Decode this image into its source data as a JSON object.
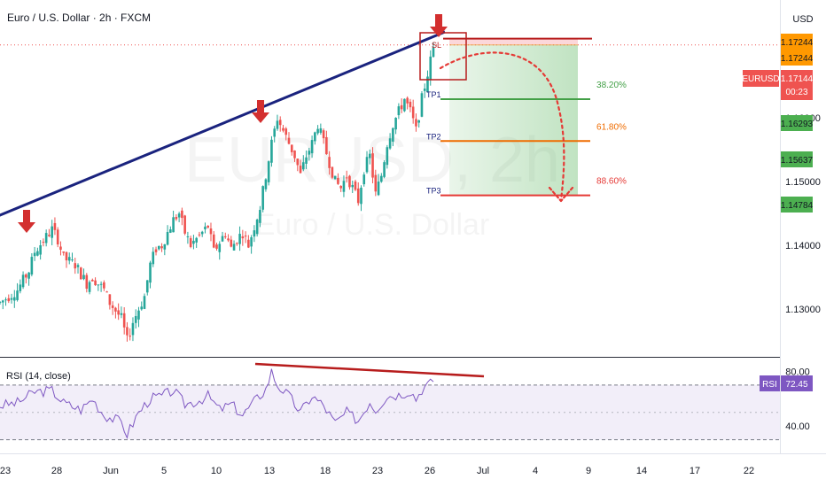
{
  "header": {
    "title": "Euro / U.S. Dollar · 2h · FXCM"
  },
  "watermark": {
    "symbol": "EURUSD, 2h",
    "name": "Euro / U.S. Dollar"
  },
  "price_axis": {
    "currency": "USD",
    "ticks": [
      "1.16000",
      "1.15000",
      "1.14000",
      "1.13000"
    ]
  },
  "price_tags": [
    {
      "text": "1.17244",
      "color": "#ff9800",
      "kind": "sl"
    },
    {
      "text": "1.17244",
      "color": "#ff9800",
      "kind": "sl2"
    },
    {
      "text": "1.16293",
      "color": "#4caf50",
      "kind": "tp1"
    },
    {
      "text": "1.15637",
      "color": "#4caf50",
      "kind": "tp2"
    },
    {
      "text": "1.14784",
      "color": "#4caf50",
      "kind": "tp3"
    }
  ],
  "current": {
    "symbol": "EURUSD",
    "price": "1.17144",
    "countdown": "00:23",
    "color": "#ef5350"
  },
  "levels": [
    {
      "label": "SL",
      "price": 1.17244,
      "color": "#b71c1c"
    },
    {
      "label": "TP1",
      "price": 1.16293,
      "pct": "38.20%",
      "color": "#43a047"
    },
    {
      "label": "TP2",
      "price": 1.15637,
      "pct": "61.80%",
      "color": "#ef6c00"
    },
    {
      "label": "TP3",
      "price": 1.14784,
      "pct": "88.60%",
      "color": "#e53935"
    }
  ],
  "rsi": {
    "title": "RSI (14, close)",
    "badge_label": "RSI",
    "value": "72.45",
    "ticks": [
      "80.00",
      "40.00"
    ],
    "upper": 70,
    "lower": 30
  },
  "x_axis": {
    "ticks": [
      "23",
      "28",
      "Jun",
      "5",
      "10",
      "13",
      "18",
      "23",
      "26",
      "Jul",
      "4",
      "9",
      "14",
      "17",
      "22"
    ]
  },
  "chart_data": {
    "type": "candlestick",
    "title": "Euro / U.S. Dollar · 2h · FXCM",
    "ylim": [
      1.1225,
      1.1785
    ],
    "x_ticks": [
      "23",
      "28",
      "Jun",
      "5",
      "10",
      "13",
      "18",
      "23",
      "26",
      "Jul",
      "4",
      "9",
      "14",
      "17",
      "22"
    ],
    "close_path": [
      [
        0,
        1.131
      ],
      [
        3,
        1.133
      ],
      [
        5,
        1.136
      ],
      [
        6,
        1.139
      ],
      [
        9,
        1.1425
      ],
      [
        10,
        1.141
      ],
      [
        11,
        1.138
      ],
      [
        13,
        1.137
      ],
      [
        15,
        1.134
      ],
      [
        16,
        1.135
      ],
      [
        18,
        1.133
      ],
      [
        19,
        1.131
      ],
      [
        21,
        1.1285
      ],
      [
        22,
        1.125
      ],
      [
        23,
        1.128
      ],
      [
        25,
        1.132
      ],
      [
        26,
        1.137
      ],
      [
        27,
        1.1395
      ],
      [
        28,
        1.14
      ],
      [
        30,
        1.144
      ],
      [
        31,
        1.145
      ],
      [
        32,
        1.142
      ],
      [
        33,
        1.14
      ],
      [
        34,
        1.141
      ],
      [
        36,
        1.143
      ],
      [
        37,
        1.139
      ],
      [
        39,
        1.142
      ],
      [
        40,
        1.1395
      ],
      [
        41,
        1.141
      ],
      [
        42,
        1.142
      ],
      [
        43,
        1.14
      ],
      [
        44,
        1.143
      ],
      [
        45,
        1.146
      ],
      [
        46,
        1.151
      ],
      [
        47,
        1.156
      ],
      [
        48,
        1.16
      ],
      [
        49,
        1.158
      ],
      [
        50,
        1.156
      ],
      [
        51,
        1.154
      ],
      [
        52,
        1.151
      ],
      [
        53,
        1.154
      ],
      [
        54,
        1.156
      ],
      [
        55,
        1.159
      ],
      [
        56,
        1.156
      ],
      [
        57,
        1.153
      ],
      [
        58,
        1.15
      ],
      [
        59,
        1.149
      ],
      [
        60,
        1.151
      ],
      [
        61,
        1.149
      ],
      [
        62,
        1.147
      ],
      [
        63,
        1.152
      ],
      [
        64,
        1.154
      ],
      [
        65,
        1.148
      ],
      [
        66,
        1.151
      ],
      [
        67,
        1.156
      ],
      [
        68,
        1.159
      ],
      [
        69,
        1.161
      ],
      [
        70,
        1.163
      ],
      [
        71,
        1.161
      ],
      [
        72,
        1.158
      ],
      [
        73,
        1.163
      ],
      [
        74,
        1.167
      ],
      [
        75,
        1.171
      ]
    ],
    "resistance_line": [
      [
        -6,
        1.1425
      ],
      [
        77,
        1.1735
      ]
    ],
    "rsi_ylim": [
      20,
      90
    ],
    "rsi_upper": 70,
    "rsi_lower": 30,
    "rsi_path": [
      [
        0,
        55
      ],
      [
        3,
        57
      ],
      [
        6,
        65
      ],
      [
        9,
        66
      ],
      [
        11,
        57
      ],
      [
        14,
        52
      ],
      [
        16,
        60
      ],
      [
        18,
        48
      ],
      [
        21,
        43
      ],
      [
        22,
        34
      ],
      [
        24,
        50
      ],
      [
        26,
        60
      ],
      [
        28,
        62
      ],
      [
        30,
        66
      ],
      [
        32,
        56
      ],
      [
        34,
        58
      ],
      [
        36,
        62
      ],
      [
        38,
        52
      ],
      [
        40,
        56
      ],
      [
        42,
        48
      ],
      [
        44,
        58
      ],
      [
        46,
        67
      ],
      [
        47,
        80
      ],
      [
        48,
        70
      ],
      [
        50,
        62
      ],
      [
        52,
        50
      ],
      [
        54,
        62
      ],
      [
        56,
        55
      ],
      [
        58,
        42
      ],
      [
        60,
        50
      ],
      [
        62,
        44
      ],
      [
        64,
        58
      ],
      [
        65,
        52
      ],
      [
        67,
        62
      ],
      [
        69,
        63
      ],
      [
        71,
        66
      ],
      [
        72,
        60
      ],
      [
        73,
        67
      ],
      [
        74,
        70
      ],
      [
        75,
        72.45
      ]
    ],
    "annotations": [
      "SL",
      "TP1",
      "TP2",
      "TP3",
      "38.20%",
      "61.80%",
      "88.60%"
    ]
  }
}
